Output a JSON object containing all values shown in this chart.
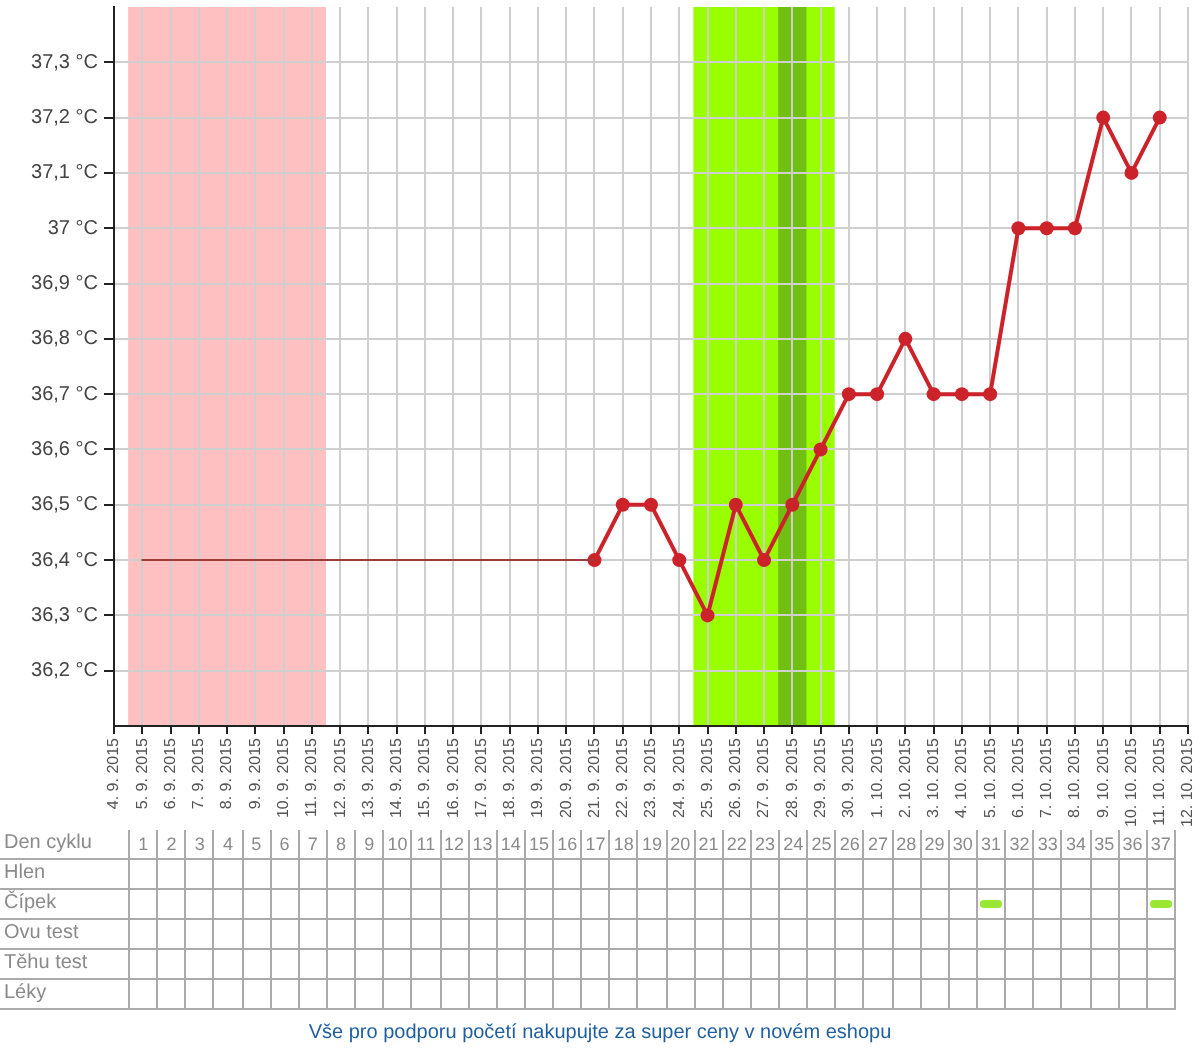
{
  "chart_data": [
    {
      "type": "line",
      "xlim": [
        "2015-09-04",
        "2015-10-12"
      ],
      "xticks": [
        {
          "value": "2015-09-04",
          "label": "4. 9. 2015"
        },
        {
          "value": "2015-09-05",
          "label": "5. 9. 2015"
        },
        {
          "value": "2015-09-06",
          "label": "6. 9. 2015"
        },
        {
          "value": "2015-09-07",
          "label": "7. 9. 2015"
        },
        {
          "value": "2015-09-08",
          "label": "8. 9. 2015"
        },
        {
          "value": "2015-09-09",
          "label": "9. 9. 2015"
        },
        {
          "value": "2015-09-10",
          "label": "10. 9. 2015"
        },
        {
          "value": "2015-09-11",
          "label": "11. 9. 2015"
        },
        {
          "value": "2015-09-12",
          "label": "12. 9. 2015"
        },
        {
          "value": "2015-09-13",
          "label": "13. 9. 2015"
        },
        {
          "value": "2015-09-14",
          "label": "14. 9. 2015"
        },
        {
          "value": "2015-09-15",
          "label": "15. 9. 2015"
        },
        {
          "value": "2015-09-16",
          "label": "16. 9. 2015"
        },
        {
          "value": "2015-09-17",
          "label": "17. 9. 2015"
        },
        {
          "value": "2015-09-18",
          "label": "18. 9. 2015"
        },
        {
          "value": "2015-09-19",
          "label": "19. 9. 2015"
        },
        {
          "value": "2015-09-20",
          "label": "20. 9. 2015"
        },
        {
          "value": "2015-09-21",
          "label": "21. 9. 2015"
        },
        {
          "value": "2015-09-22",
          "label": "22. 9. 2015"
        },
        {
          "value": "2015-09-23",
          "label": "23. 9. 2015"
        },
        {
          "value": "2015-09-24",
          "label": "24. 9. 2015"
        },
        {
          "value": "2015-09-25",
          "label": "25. 9. 2015"
        },
        {
          "value": "2015-09-26",
          "label": "26. 9. 2015"
        },
        {
          "value": "2015-09-27",
          "label": "27. 9. 2015"
        },
        {
          "value": "2015-09-28",
          "label": "28. 9. 2015"
        },
        {
          "value": "2015-09-29",
          "label": "29. 9. 2015"
        },
        {
          "value": "2015-09-30",
          "label": "30. 9. 2015"
        },
        {
          "value": "2015-10-01",
          "label": "1. 10. 2015"
        },
        {
          "value": "2015-10-02",
          "label": "2. 10. 2015"
        },
        {
          "value": "2015-10-03",
          "label": "3. 10. 2015"
        },
        {
          "value": "2015-10-04",
          "label": "4. 10. 2015"
        },
        {
          "value": "2015-10-05",
          "label": "5. 10. 2015"
        },
        {
          "value": "2015-10-06",
          "label": "6. 10. 2015"
        },
        {
          "value": "2015-10-07",
          "label": "7. 10. 2015"
        },
        {
          "value": "2015-10-08",
          "label": "8. 10. 2015"
        },
        {
          "value": "2015-10-09",
          "label": "9. 10. 2015"
        },
        {
          "value": "2015-10-10",
          "label": "10. 10. 2015"
        },
        {
          "value": "2015-10-11",
          "label": "11. 10. 2015"
        },
        {
          "value": "2015-10-12",
          "label": "12. 10. 2015"
        }
      ],
      "ylim": [
        36.1,
        37.4
      ],
      "yticks": [
        {
          "value": 36.2,
          "label": "36,2 °C"
        },
        {
          "value": 36.3,
          "label": "36,3 °C"
        },
        {
          "value": 36.4,
          "label": "36,4 °C"
        },
        {
          "value": 36.5,
          "label": "36,5 °C"
        },
        {
          "value": 36.6,
          "label": "36,6 °C"
        },
        {
          "value": 36.7,
          "label": "36,7 °C"
        },
        {
          "value": 36.8,
          "label": "36,8 °C"
        },
        {
          "value": 36.9,
          "label": "36,9 °C"
        },
        {
          "value": 37.0,
          "label": "37 °C"
        },
        {
          "value": 37.1,
          "label": "37,1 °C"
        },
        {
          "value": 37.2,
          "label": "37,2 °C"
        },
        {
          "value": 37.3,
          "label": "37,3 °C"
        }
      ],
      "grid": true,
      "marker": "circle",
      "series": [
        {
          "color": "#9e3a3a",
          "marker": "none",
          "x": [
            "2015-09-05",
            "2015-09-06",
            "2015-09-07",
            "2015-09-08",
            "2015-09-09",
            "2015-09-10",
            "2015-09-11",
            "2015-09-12",
            "2015-09-13",
            "2015-09-14",
            "2015-09-15",
            "2015-09-16",
            "2015-09-17",
            "2015-09-18",
            "2015-09-19",
            "2015-09-20",
            "2015-09-21"
          ],
          "values": [
            36.4,
            36.4,
            36.4,
            36.4,
            36.4,
            36.4,
            36.4,
            36.4,
            36.4,
            36.4,
            36.4,
            36.4,
            36.4,
            36.4,
            36.4,
            36.4,
            36.4
          ]
        },
        {
          "color": "#cc2229",
          "x": [
            "2015-09-21",
            "2015-09-22",
            "2015-09-23",
            "2015-09-24",
            "2015-09-25",
            "2015-09-26",
            "2015-09-27",
            "2015-09-28",
            "2015-09-29",
            "2015-09-30",
            "2015-10-01",
            "2015-10-02",
            "2015-10-03",
            "2015-10-04",
            "2015-10-05",
            "2015-10-06",
            "2015-10-07",
            "2015-10-08",
            "2015-10-09",
            "2015-10-10",
            "2015-10-11"
          ],
          "values": [
            36.4,
            36.5,
            36.5,
            36.4,
            36.3,
            36.5,
            36.4,
            36.5,
            36.6,
            36.7,
            36.7,
            36.8,
            36.7,
            36.7,
            36.7,
            37.0,
            37.0,
            37.0,
            37.2,
            37.1,
            37.2
          ]
        }
      ],
      "bands": [
        {
          "axis": "x",
          "from": "2015-09-04T12:00",
          "to": "2015-09-11T12:00",
          "color": "#ffc0c1"
        },
        {
          "axis": "x",
          "from": "2015-09-24T12:00",
          "to": "2015-09-29T12:00",
          "color": "#99ff00"
        },
        {
          "axis": "x",
          "from": "2015-09-27T12:00",
          "to": "2015-09-28T12:00",
          "color": "#72bf14"
        }
      ],
      "annotations": [
        "Vše pro podporu početí nakupujte za super ceny v novém eshopu"
      ]
    },
    {
      "type": "heatmap",
      "xlabel": "Den cyklu",
      "grid": true,
      "categories": [
        "1",
        "2",
        "3",
        "4",
        "5",
        "6",
        "7",
        "8",
        "9",
        "10",
        "11",
        "12",
        "13",
        "14",
        "15",
        "16",
        "17",
        "18",
        "19",
        "20",
        "21",
        "22",
        "23",
        "24",
        "25",
        "26",
        "27",
        "28",
        "29",
        "30",
        "31",
        "32",
        "33",
        "34",
        "35",
        "36",
        "37"
      ],
      "y_categories": [
        "Hlen",
        "Čípek",
        "Ovu test",
        "Těhu test",
        "Léky"
      ],
      "color": "#99e633",
      "cells": [
        [
          null,
          null,
          null,
          null,
          null,
          null,
          null,
          null,
          null,
          null,
          null,
          null,
          null,
          null,
          null,
          null,
          null,
          null,
          null,
          null,
          null,
          null,
          null,
          null,
          null,
          null,
          null,
          null,
          null,
          null,
          null,
          null,
          null,
          null,
          null,
          null,
          null
        ],
        [
          null,
          null,
          null,
          null,
          null,
          null,
          null,
          null,
          null,
          null,
          null,
          null,
          null,
          null,
          null,
          null,
          null,
          null,
          null,
          null,
          null,
          null,
          null,
          null,
          null,
          null,
          null,
          null,
          null,
          null,
          true,
          null,
          null,
          null,
          null,
          null,
          true
        ],
        [
          null,
          null,
          null,
          null,
          null,
          null,
          null,
          null,
          null,
          null,
          null,
          null,
          null,
          null,
          null,
          null,
          null,
          null,
          null,
          null,
          null,
          null,
          null,
          null,
          null,
          null,
          null,
          null,
          null,
          null,
          null,
          null,
          null,
          null,
          null,
          null,
          null
        ],
        [
          null,
          null,
          null,
          null,
          null,
          null,
          null,
          null,
          null,
          null,
          null,
          null,
          null,
          null,
          null,
          null,
          null,
          null,
          null,
          null,
          null,
          null,
          null,
          null,
          null,
          null,
          null,
          null,
          null,
          null,
          null,
          null,
          null,
          null,
          null,
          null,
          null
        ],
        [
          null,
          null,
          null,
          null,
          null,
          null,
          null,
          null,
          null,
          null,
          null,
          null,
          null,
          null,
          null,
          null,
          null,
          null,
          null,
          null,
          null,
          null,
          null,
          null,
          null,
          null,
          null,
          null,
          null,
          null,
          null,
          null,
          null,
          null,
          null,
          null,
          null
        ]
      ]
    }
  ]
}
